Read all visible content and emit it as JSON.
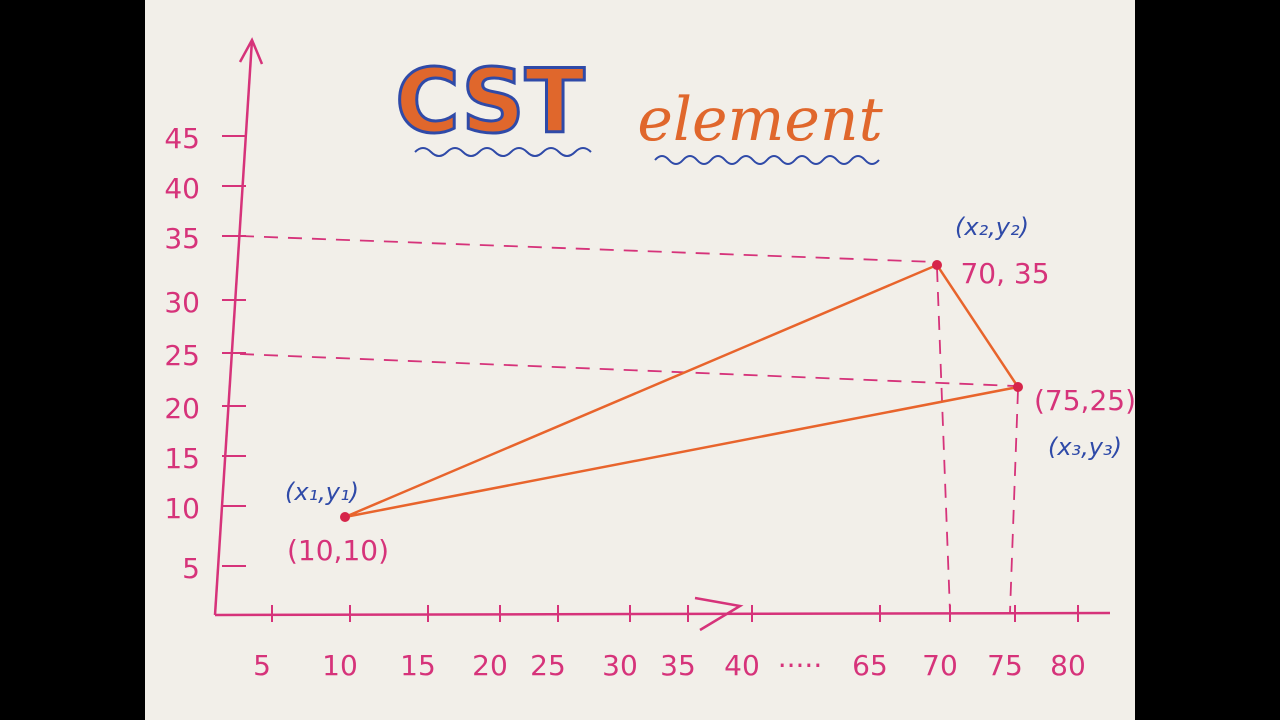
{
  "title": "CST",
  "subtitle": "element",
  "y_axis": {
    "ticks": [
      45,
      40,
      35,
      30,
      25,
      20,
      15,
      10,
      5
    ]
  },
  "x_axis": {
    "ticks": [
      "5",
      "10",
      "15",
      "20",
      "25",
      "30",
      "35",
      "40",
      "·····",
      "65",
      "70",
      "75",
      "80"
    ]
  },
  "points": [
    {
      "name": "(x₁,y₁)",
      "coords": "(10,10)"
    },
    {
      "name": "(x₂,y₂)",
      "coords": "70, 35"
    },
    {
      "name": "(x₃,y₃)",
      "coords": "(75,25)"
    }
  ]
}
